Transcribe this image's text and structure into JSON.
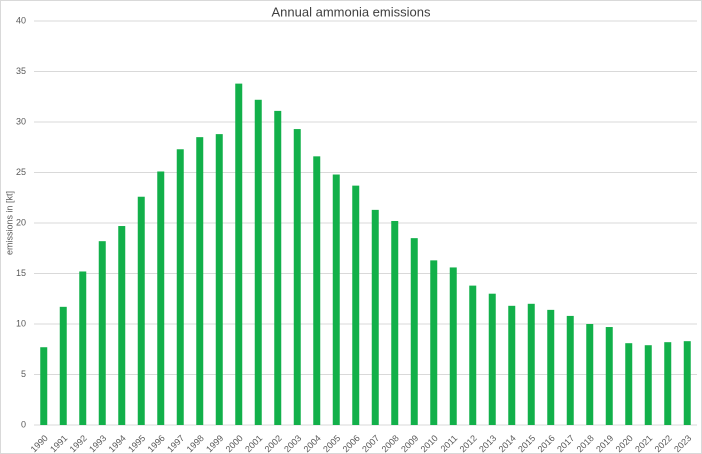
{
  "chart_data": {
    "type": "bar",
    "title": "Annual ammonia emissions",
    "y_label": "emissions in [kt]",
    "categories": [
      "1990",
      "1991",
      "1992",
      "1993",
      "1994",
      "1995",
      "1996",
      "1997",
      "1998",
      "1999",
      "2000",
      "2001",
      "2002",
      "2003",
      "2004",
      "2005",
      "2006",
      "2007",
      "2008",
      "2009",
      "2010",
      "2011",
      "2012",
      "2013",
      "2014",
      "2015",
      "2016",
      "2017",
      "2018",
      "2019",
      "2020",
      "2021",
      "2022",
      "2023"
    ],
    "values": [
      7.7,
      11.7,
      15.2,
      18.2,
      19.7,
      22.6,
      25.1,
      27.3,
      28.5,
      28.8,
      33.8,
      32.2,
      31.1,
      29.3,
      26.6,
      24.8,
      23.7,
      21.3,
      20.2,
      18.5,
      16.3,
      15.6,
      13.8,
      13.0,
      11.8,
      12.0,
      11.4,
      10.8,
      10.0,
      9.7,
      8.1,
      7.9,
      8.2,
      8.3
    ],
    "color": "#12b04a",
    "ylim": [
      0,
      40
    ],
    "yticks": [
      0,
      5,
      10,
      15,
      20,
      25,
      30,
      35,
      40
    ],
    "grid": true
  }
}
